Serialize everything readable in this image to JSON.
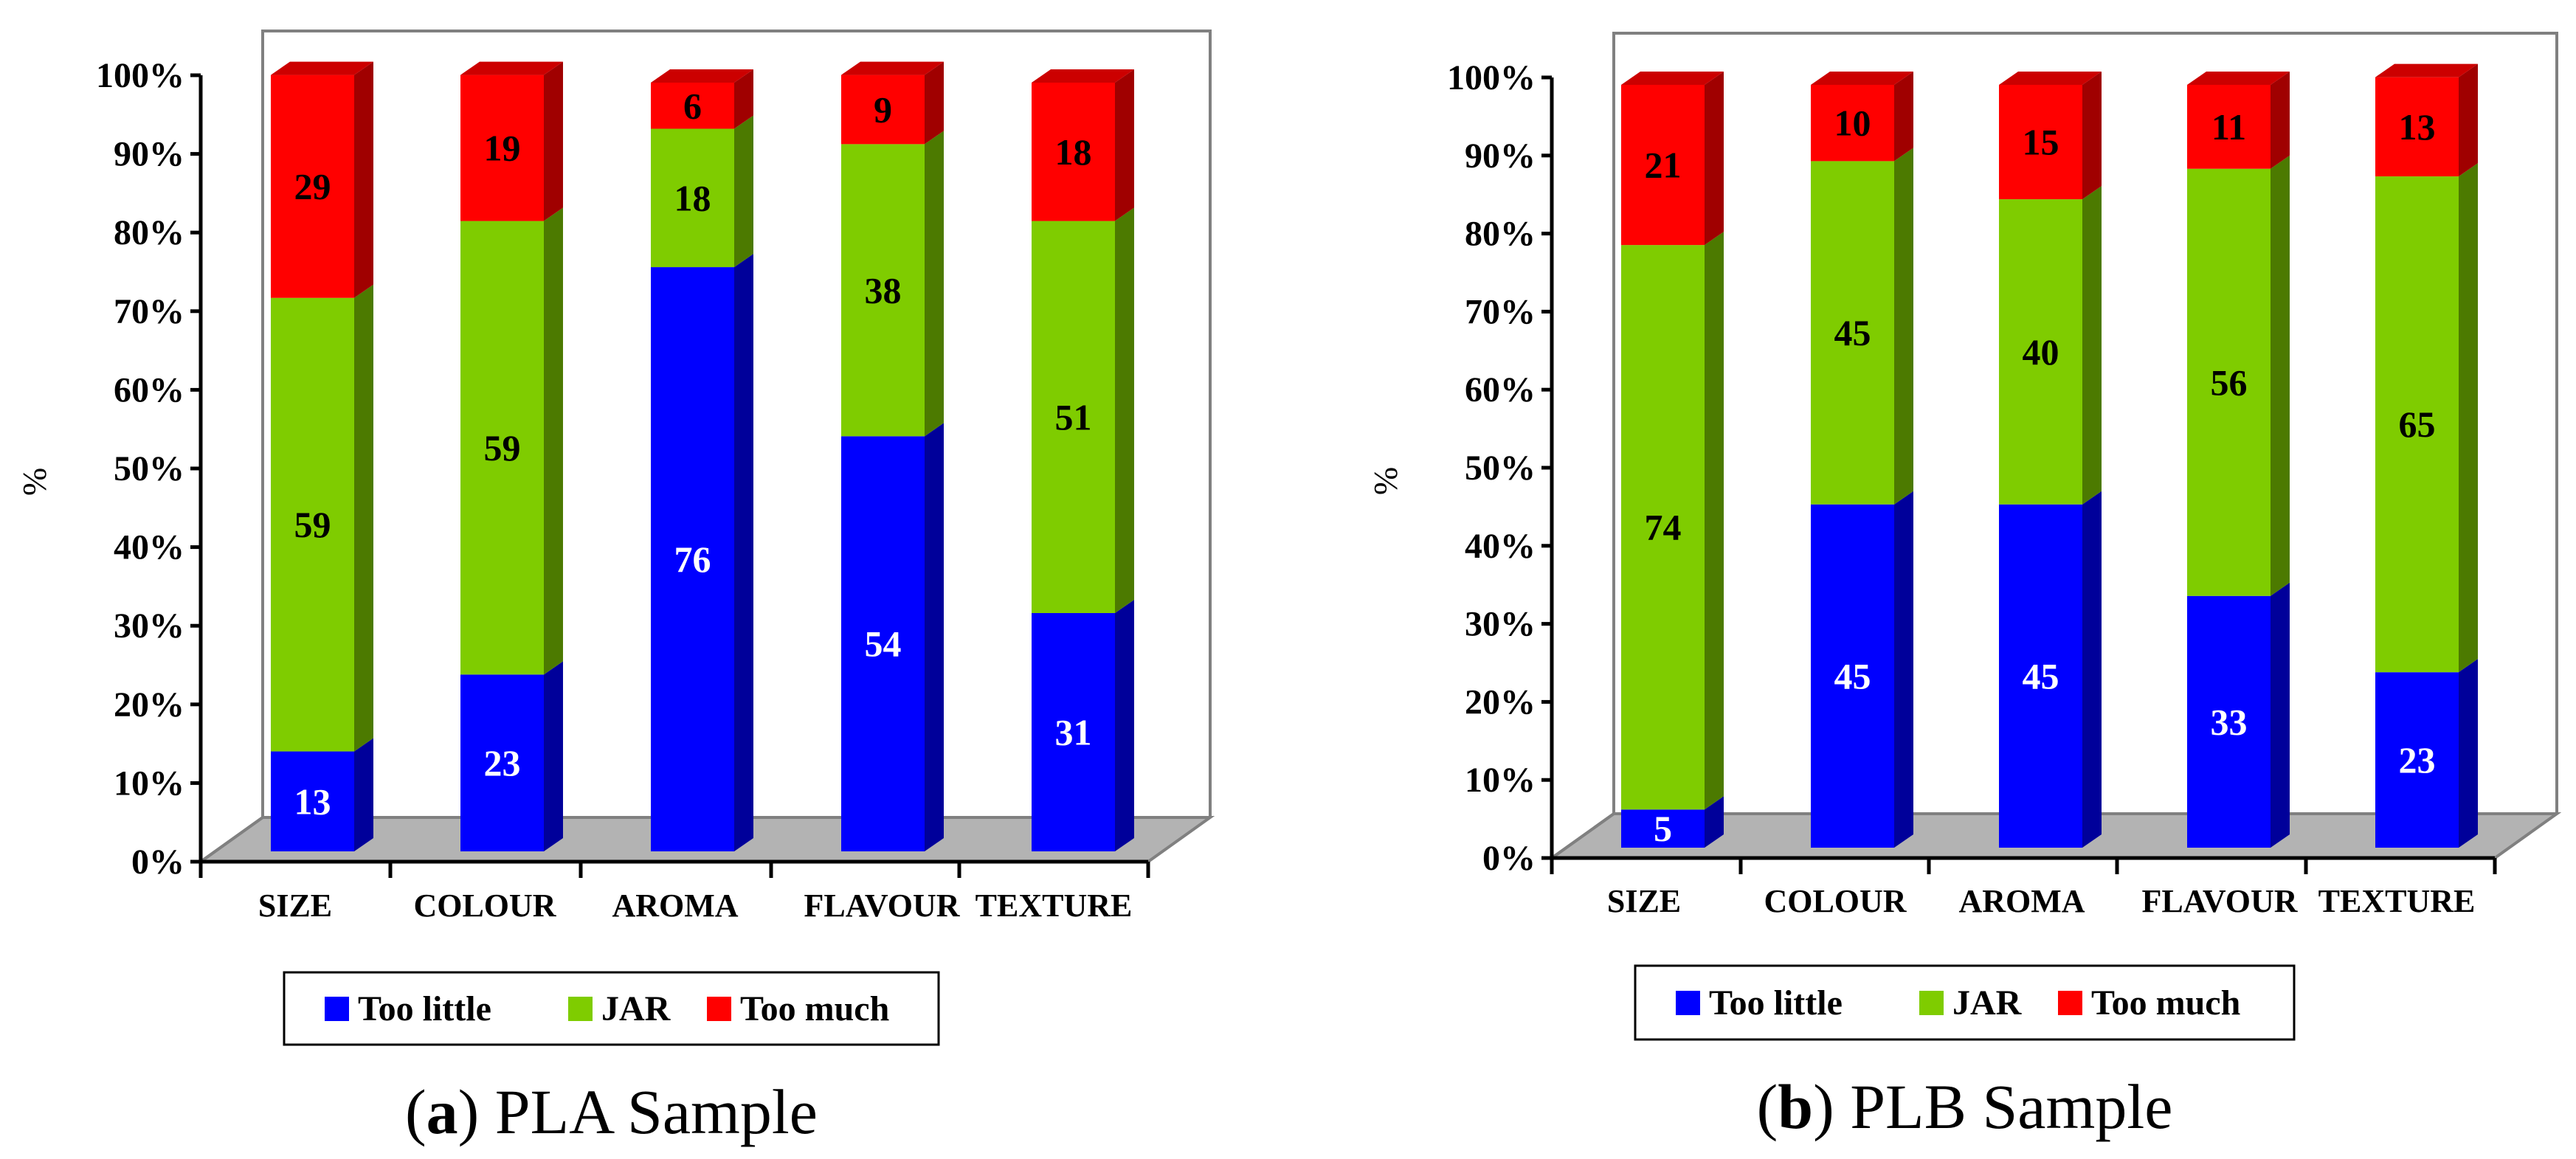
{
  "colors": {
    "too_little": "#0000FF",
    "too_little_side": "#00009A",
    "too_little_top": "#0000C4",
    "jar": "#7FCC00",
    "jar_side": "#4C7A00",
    "jar_top": "#669F00",
    "too_much": "#FF0000",
    "too_much_side": "#A00000",
    "too_much_top": "#CC0000",
    "floor": "#B3B3B3",
    "axis": "#808080"
  },
  "chart_data": [
    {
      "type": "bar",
      "stacked": true,
      "percent_stacked": true,
      "three_d": true,
      "caption_letter": "a",
      "caption_text": "PLA Sample",
      "ylabel": "%",
      "xlabel": "",
      "ylim": [
        0,
        100
      ],
      "y_ticks": [
        "0%",
        "10%",
        "20%",
        "30%",
        "40%",
        "50%",
        "60%",
        "70%",
        "80%",
        "90%",
        "100%"
      ],
      "categories": [
        "SIZE",
        "COLOUR",
        "AROMA",
        "FLAVOUR",
        "TEXTURE"
      ],
      "series": [
        {
          "name": "Too little",
          "key": "too_little",
          "values": [
            13,
            23,
            76,
            54,
            31
          ]
        },
        {
          "name": "JAR",
          "key": "jar",
          "values": [
            59,
            59,
            18,
            38,
            51
          ]
        },
        {
          "name": "Too much",
          "key": "too_much",
          "values": [
            29,
            19,
            6,
            9,
            18
          ]
        }
      ],
      "legend": [
        "Too little",
        "JAR",
        "Too much"
      ],
      "legend_position": "bottom"
    },
    {
      "type": "bar",
      "stacked": true,
      "percent_stacked": true,
      "three_d": true,
      "caption_letter": "b",
      "caption_text": "PLB Sample",
      "ylabel": "%",
      "xlabel": "",
      "ylim": [
        0,
        100
      ],
      "y_ticks": [
        "0%",
        "10%",
        "20%",
        "30%",
        "40%",
        "50%",
        "60%",
        "70%",
        "80%",
        "90%",
        "100%"
      ],
      "categories": [
        "SIZE",
        "COLOUR",
        "AROMA",
        "FLAVOUR",
        "TEXTURE"
      ],
      "series": [
        {
          "name": "Too little",
          "key": "too_little",
          "values": [
            5,
            45,
            45,
            33,
            23
          ]
        },
        {
          "name": "JAR",
          "key": "jar",
          "values": [
            74,
            45,
            40,
            56,
            65
          ]
        },
        {
          "name": "Too much",
          "key": "too_much",
          "values": [
            21,
            10,
            15,
            11,
            13
          ]
        }
      ],
      "legend": [
        "Too little",
        "JAR",
        "Too much"
      ],
      "legend_position": "bottom"
    }
  ]
}
